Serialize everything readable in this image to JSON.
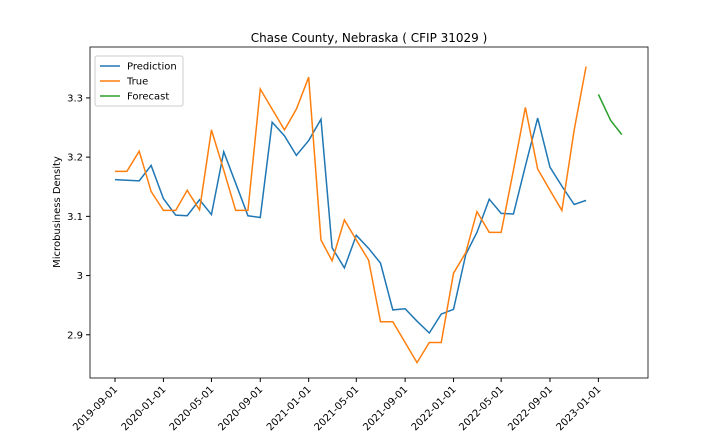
{
  "chart_data": {
    "type": "line",
    "title": "Chase County, Nebraska ( CFIP 31029 )",
    "y_label": "Microbusiness Density",
    "x": [
      "2019-09-01",
      "2019-10-01",
      "2019-11-01",
      "2019-12-01",
      "2020-01-01",
      "2020-02-01",
      "2020-03-01",
      "2020-04-01",
      "2020-05-01",
      "2020-06-01",
      "2020-07-01",
      "2020-08-01",
      "2020-09-01",
      "2020-10-01",
      "2020-11-01",
      "2020-12-01",
      "2021-01-01",
      "2021-02-01",
      "2021-03-01",
      "2021-04-01",
      "2021-05-01",
      "2021-06-01",
      "2021-07-01",
      "2021-08-01",
      "2021-09-01",
      "2021-10-01",
      "2021-11-01",
      "2021-12-01",
      "2022-01-01",
      "2022-02-01",
      "2022-03-01",
      "2022-04-01",
      "2022-05-01",
      "2022-06-01",
      "2022-07-01",
      "2022-08-01",
      "2022-09-01",
      "2022-10-01",
      "2022-11-01",
      "2022-12-01",
      "2023-01-01",
      "2023-02-01",
      "2023-03-01"
    ],
    "series": [
      {
        "name": "Prediction",
        "color": "#1f77b4",
        "values": [
          3.162,
          3.161,
          3.16,
          3.186,
          3.13,
          3.102,
          3.101,
          3.128,
          3.103,
          3.209,
          3.156,
          3.101,
          3.098,
          3.259,
          3.236,
          3.203,
          3.228,
          3.264,
          3.047,
          3.013,
          3.068,
          3.046,
          3.021,
          2.942,
          2.944,
          2.923,
          2.903,
          2.935,
          2.943,
          3.036,
          3.073,
          3.129,
          3.105,
          3.104,
          3.185,
          3.266,
          3.183,
          3.151,
          3.12,
          3.127,
          null,
          null,
          null
        ]
      },
      {
        "name": "True",
        "color": "#ff7f0e",
        "values": [
          3.176,
          3.176,
          3.21,
          3.142,
          3.11,
          3.11,
          3.144,
          3.111,
          3.246,
          3.178,
          3.11,
          3.11,
          3.315,
          3.281,
          3.246,
          3.281,
          3.335,
          3.06,
          3.025,
          3.094,
          3.06,
          3.026,
          2.922,
          2.922,
          2.887,
          2.853,
          2.887,
          2.887,
          3.004,
          3.039,
          3.108,
          3.073,
          3.073,
          3.178,
          3.284,
          3.18,
          3.144,
          3.11,
          3.246,
          3.353,
          null,
          null,
          null
        ]
      },
      {
        "name": "Forecast",
        "color": "#2ca02c",
        "values": [
          null,
          null,
          null,
          null,
          null,
          null,
          null,
          null,
          null,
          null,
          null,
          null,
          null,
          null,
          null,
          null,
          null,
          null,
          null,
          null,
          null,
          null,
          null,
          null,
          null,
          null,
          null,
          null,
          null,
          null,
          null,
          null,
          null,
          null,
          null,
          null,
          null,
          null,
          null,
          null,
          3.306,
          3.262,
          3.238
        ]
      }
    ],
    "xlim": [
      "2019-06-30",
      "2023-05-06"
    ],
    "xticks": [
      "2019-09-01",
      "2020-01-01",
      "2020-05-01",
      "2020-09-01",
      "2021-01-01",
      "2021-05-01",
      "2021-09-01",
      "2022-01-01",
      "2022-05-01",
      "2022-09-01",
      "2023-01-01"
    ],
    "ylim": [
      2.827,
      3.386
    ],
    "yticks": [
      2.9,
      3.0,
      3.1,
      3.2,
      3.3
    ],
    "legend": "upper left",
    "grid": false
  }
}
